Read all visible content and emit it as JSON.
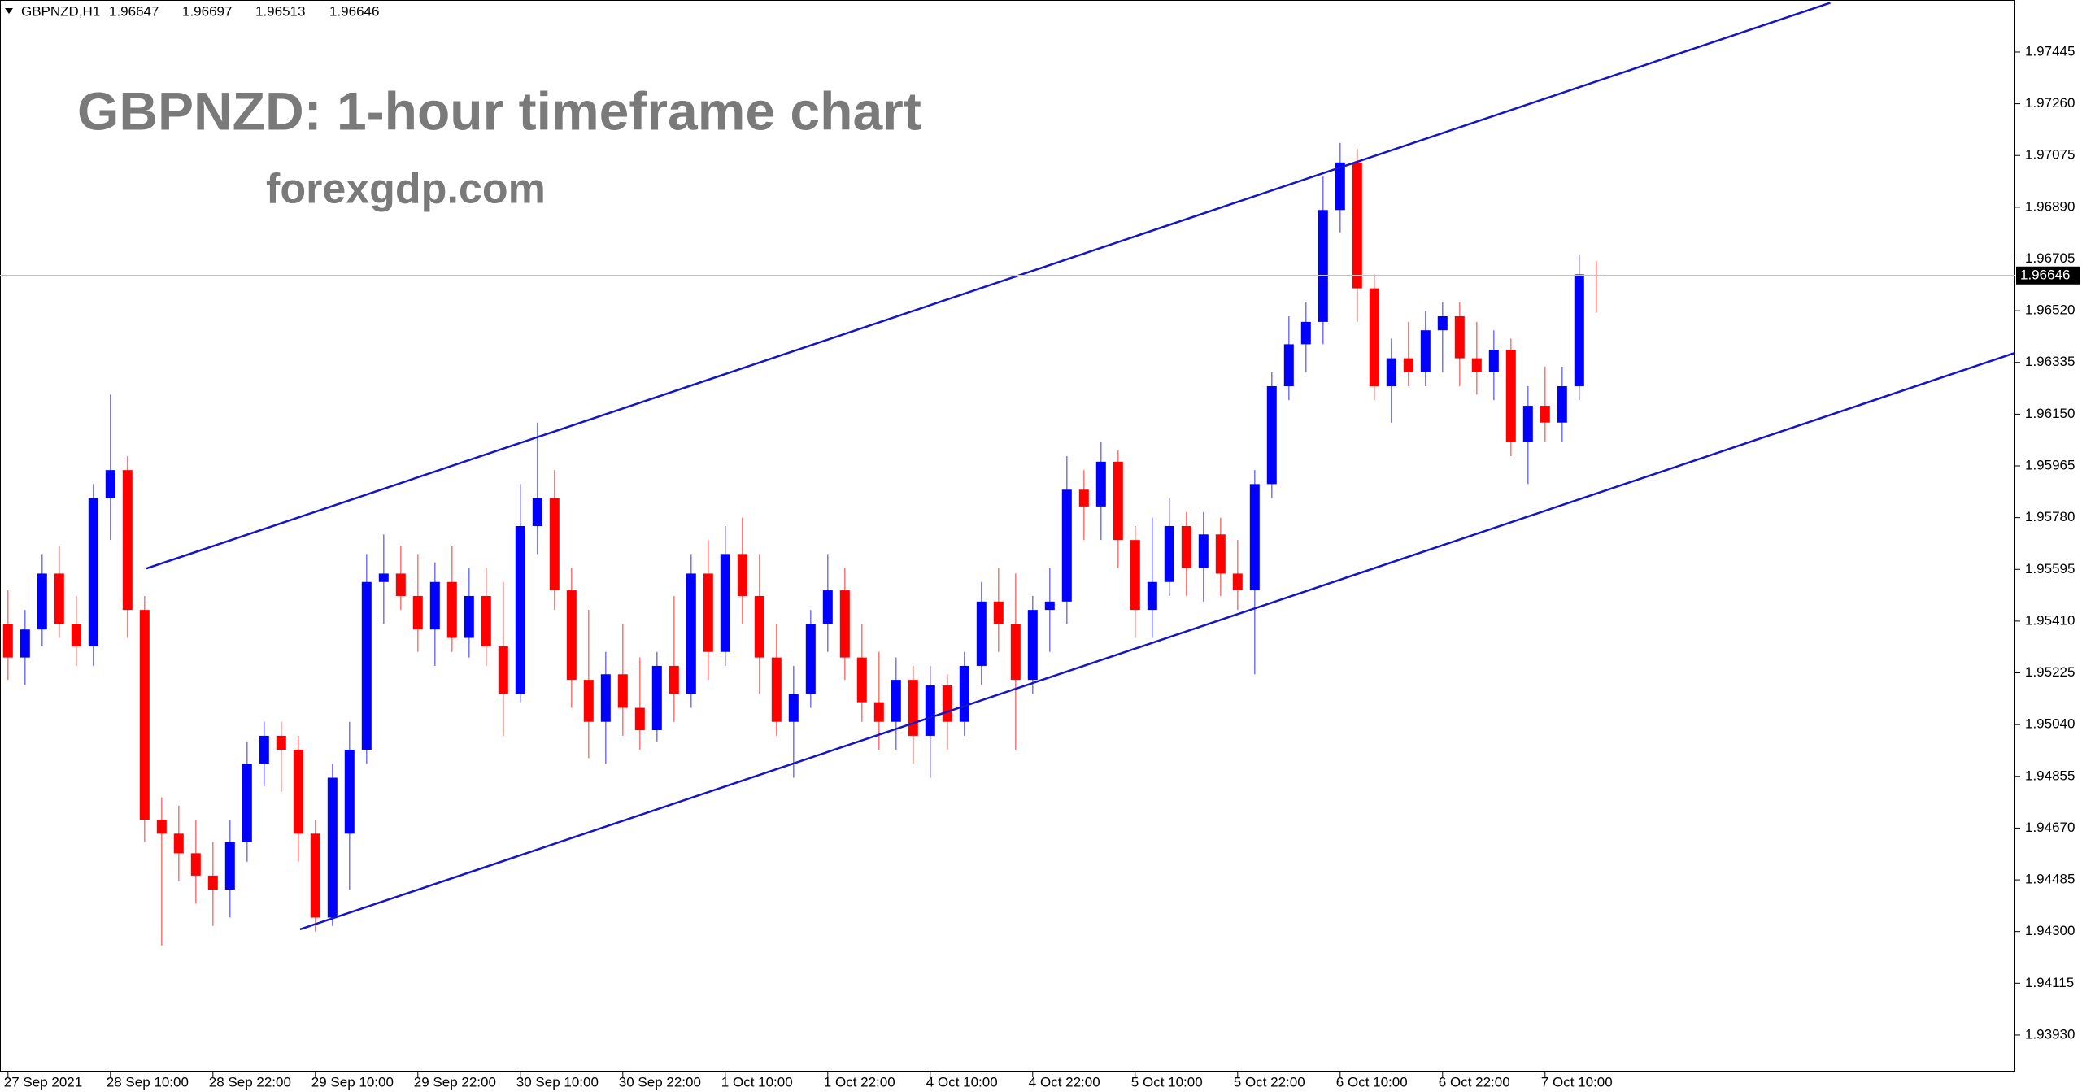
{
  "chart_data": {
    "type": "candlestick",
    "symbol": "GBPNZD,H1",
    "title": "GBPNZD: 1-hour timeframe chart",
    "subtitle": "forexgdp.com",
    "categories": [
      "27 Sep 2021",
      null,
      null,
      null,
      null,
      null,
      "28 Sep 10:00",
      null,
      null,
      null,
      null,
      null,
      "28 Sep 22:00",
      null,
      null,
      null,
      null,
      null,
      "29 Sep 10:00",
      null,
      null,
      null,
      null,
      null,
      "29 Sep 22:00",
      null,
      null,
      null,
      null,
      null,
      "30 Sep 10:00",
      null,
      null,
      null,
      null,
      null,
      "30 Sep 22:00",
      null,
      null,
      null,
      null,
      null,
      "1 Oct 10:00",
      null,
      null,
      null,
      null,
      null,
      "1 Oct 22:00",
      null,
      null,
      null,
      null,
      null,
      "4 Oct 10:00",
      null,
      null,
      null,
      null,
      null,
      "4 Oct 22:00",
      null,
      null,
      null,
      null,
      null,
      "5 Oct 10:00",
      null,
      null,
      null,
      null,
      null,
      "5 Oct 22:00",
      null,
      null,
      null,
      null,
      null,
      "6 Oct 10:00",
      null,
      null,
      null,
      null,
      null,
      "6 Oct 22:00",
      null,
      null,
      null,
      null,
      null,
      "7 Oct 10:00",
      null,
      null,
      null
    ],
    "open": [
      1.954,
      1.9528,
      1.9538,
      1.9558,
      1.954,
      1.9532,
      1.9585,
      1.9595,
      1.9545,
      1.947,
      1.9465,
      1.9458,
      1.945,
      1.9445,
      1.9462,
      1.949,
      1.95,
      1.9495,
      1.9465,
      1.9435,
      1.9465,
      1.9495,
      1.9555,
      1.9558,
      1.955,
      1.9538,
      1.9555,
      1.9535,
      1.955,
      1.9532,
      1.9515,
      1.9575,
      1.9585,
      1.9552,
      1.952,
      1.9505,
      1.9522,
      1.951,
      1.9502,
      1.9525,
      1.9515,
      1.9558,
      1.953,
      1.9565,
      1.955,
      1.9528,
      1.9505,
      1.9515,
      1.954,
      1.9552,
      1.9528,
      1.9512,
      1.9505,
      1.952,
      1.95,
      1.9518,
      1.9505,
      1.9525,
      1.9548,
      1.954,
      1.952,
      1.9545,
      1.9548,
      1.9588,
      1.9582,
      1.9598,
      1.957,
      1.9545,
      1.9555,
      1.9575,
      1.956,
      1.9572,
      1.9558,
      1.9552,
      1.959,
      1.9625,
      1.964,
      1.9648,
      1.9688,
      1.9705,
      1.966,
      1.9625,
      1.9635,
      1.963,
      1.9645,
      1.965,
      1.9635,
      1.963,
      1.9638,
      1.9605,
      1.9618,
      1.9612,
      1.9625,
      1.96647
    ],
    "high": [
      1.9552,
      1.9545,
      1.9565,
      1.9568,
      1.955,
      1.959,
      1.9622,
      1.96,
      1.955,
      1.9478,
      1.9475,
      1.947,
      1.9462,
      1.947,
      1.9498,
      1.9505,
      1.9505,
      1.95,
      1.947,
      1.949,
      1.9505,
      1.9565,
      1.9572,
      1.9568,
      1.9565,
      1.9562,
      1.9568,
      1.956,
      1.956,
      1.9555,
      1.959,
      1.9612,
      1.9595,
      1.956,
      1.9545,
      1.953,
      1.954,
      1.9528,
      1.953,
      1.955,
      1.9565,
      1.957,
      1.9575,
      1.9578,
      1.9565,
      1.954,
      1.9525,
      1.9545,
      1.9565,
      1.956,
      1.954,
      1.953,
      1.9528,
      1.9525,
      1.9525,
      1.9522,
      1.953,
      1.9555,
      1.956,
      1.9558,
      1.955,
      1.956,
      1.96,
      1.9595,
      1.9605,
      1.9602,
      1.9575,
      1.9578,
      1.9585,
      1.958,
      1.958,
      1.9578,
      1.957,
      1.9595,
      1.963,
      1.965,
      1.9655,
      1.97,
      1.9712,
      1.971,
      1.9665,
      1.9642,
      1.9648,
      1.9652,
      1.9655,
      1.9655,
      1.9648,
      1.9645,
      1.9642,
      1.9625,
      1.9632,
      1.9632,
      1.9672,
      1.96697
    ],
    "low": [
      1.952,
      1.9518,
      1.9532,
      1.9535,
      1.9525,
      1.9525,
      1.957,
      1.9535,
      1.9462,
      1.9425,
      1.9448,
      1.944,
      1.9432,
      1.9435,
      1.9455,
      1.9482,
      1.948,
      1.9455,
      1.943,
      1.9432,
      1.9445,
      1.949,
      1.954,
      1.9545,
      1.953,
      1.9525,
      1.953,
      1.9528,
      1.9525,
      1.95,
      1.9512,
      1.9565,
      1.9545,
      1.951,
      1.9492,
      1.949,
      1.95,
      1.9495,
      1.9498,
      1.9505,
      1.951,
      1.952,
      1.9525,
      1.954,
      1.9515,
      1.95,
      1.9485,
      1.951,
      1.953,
      1.952,
      1.9505,
      1.9495,
      1.9495,
      1.949,
      1.9485,
      1.9495,
      1.95,
      1.9518,
      1.953,
      1.9495,
      1.9515,
      1.953,
      1.954,
      1.957,
      1.957,
      1.956,
      1.9535,
      1.9535,
      1.955,
      1.955,
      1.9548,
      1.955,
      1.9545,
      1.9522,
      1.9585,
      1.962,
      1.963,
      1.964,
      1.968,
      1.9648,
      1.962,
      1.9612,
      1.9625,
      1.9625,
      1.963,
      1.9625,
      1.9622,
      1.962,
      1.96,
      1.959,
      1.9605,
      1.9605,
      1.962,
      1.96513
    ],
    "close": [
      1.9528,
      1.9538,
      1.9558,
      1.954,
      1.9532,
      1.9585,
      1.9595,
      1.9545,
      1.947,
      1.9465,
      1.9458,
      1.945,
      1.9445,
      1.9462,
      1.949,
      1.95,
      1.9495,
      1.9465,
      1.9435,
      1.9485,
      1.9495,
      1.9555,
      1.9558,
      1.955,
      1.9538,
      1.9555,
      1.9535,
      1.955,
      1.9532,
      1.9515,
      1.9575,
      1.9585,
      1.9552,
      1.952,
      1.9505,
      1.9522,
      1.951,
      1.9502,
      1.9525,
      1.9515,
      1.9558,
      1.953,
      1.9565,
      1.955,
      1.9528,
      1.9505,
      1.9515,
      1.954,
      1.9552,
      1.9528,
      1.9512,
      1.9505,
      1.952,
      1.95,
      1.9518,
      1.9505,
      1.9525,
      1.9548,
      1.954,
      1.952,
      1.9545,
      1.9548,
      1.9588,
      1.9582,
      1.9598,
      1.957,
      1.9545,
      1.9555,
      1.9575,
      1.956,
      1.9572,
      1.9558,
      1.9552,
      1.959,
      1.9625,
      1.964,
      1.9648,
      1.9688,
      1.9705,
      1.966,
      1.9625,
      1.9635,
      1.963,
      1.9645,
      1.965,
      1.9635,
      1.963,
      1.9638,
      1.9605,
      1.9618,
      1.9612,
      1.9625,
      1.9665,
      1.96646
    ],
    "up_color": "#0000ff",
    "down_color": "#ff0000",
    "trendline_color": "#1515c8",
    "trendlines": [
      {
        "x": [
          8.1,
          106.7
        ],
        "y": [
          1.95598,
          1.97621
        ]
      },
      {
        "x": [
          17.1,
          117.5
        ],
        "y": [
          1.94308,
          1.96369
        ]
      }
    ],
    "ylim": [
      1.93799,
      1.97631
    ],
    "yticks": [
      {
        "value": 1.9393,
        "label": "1.93930"
      },
      1.94115,
      {
        "value": 1.943,
        "label": "1.94300"
      },
      1.94485,
      {
        "value": 1.9467,
        "label": "1.94670"
      },
      1.94855,
      {
        "value": 1.9504,
        "label": "1.95040"
      },
      1.95225,
      {
        "value": 1.9541,
        "label": "1.95410"
      },
      1.95595,
      {
        "value": 1.9578,
        "label": "1.95780"
      },
      1.95965,
      {
        "value": 1.9615,
        "label": "1.96150"
      },
      1.96335,
      {
        "value": 1.9652,
        "label": "1.96520"
      },
      1.96705,
      {
        "value": 1.9689,
        "label": "1.96890"
      },
      1.97075,
      {
        "value": 1.9726,
        "label": "1.97260"
      },
      1.97445
    ]
  }
}
